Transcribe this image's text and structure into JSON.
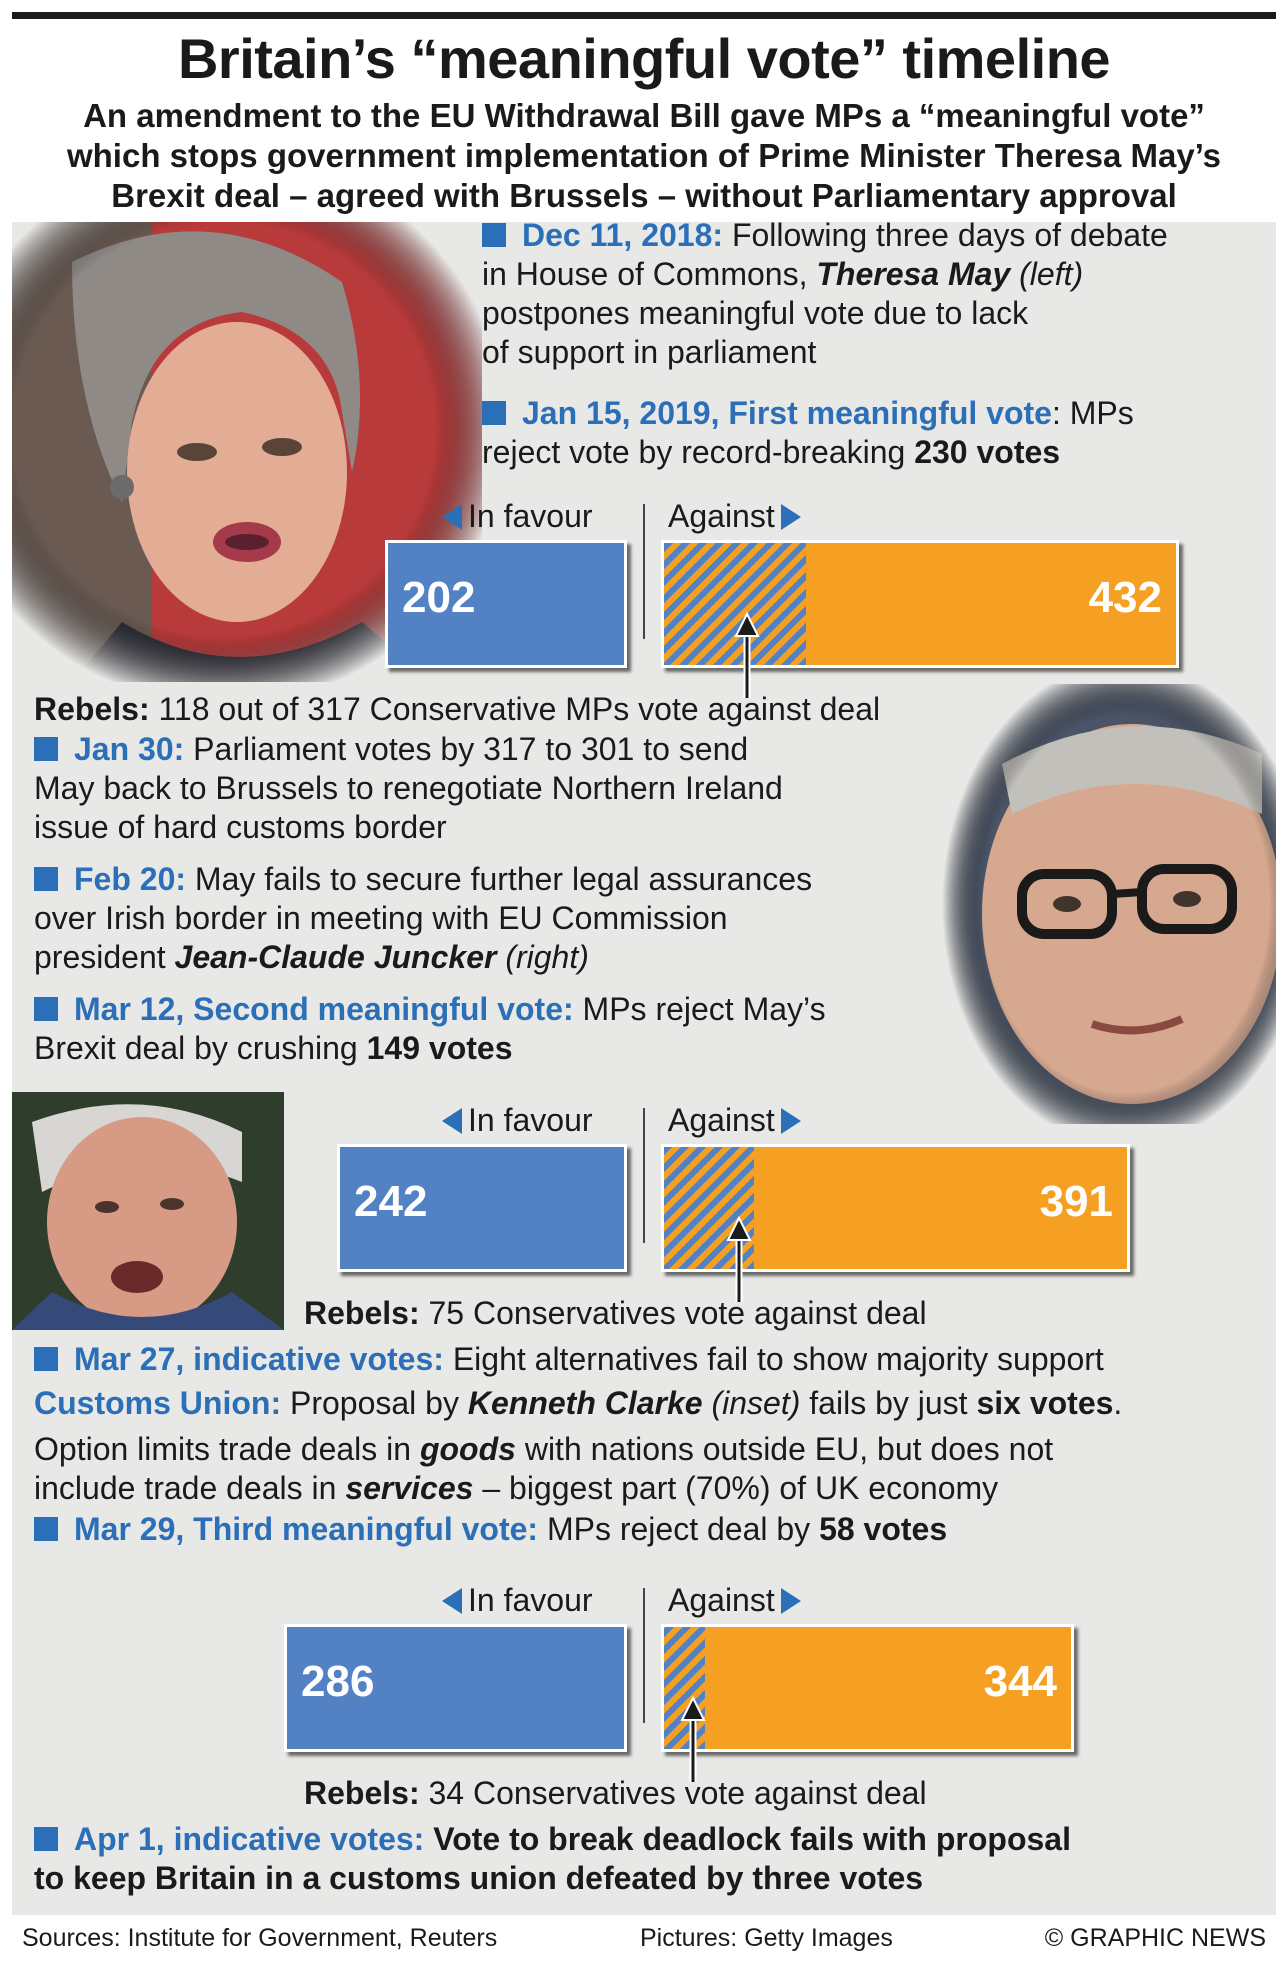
{
  "title": "Britain’s “meaningful vote” timeline",
  "subtitle": [
    "An amendment to the EU Withdrawal Bill gave MPs a “meaningful vote”",
    "which stops government implementation of Prime Minister Theresa May’s",
    "Brexit deal – agreed with Brussels – without Parliamentary approval"
  ],
  "colors": {
    "in_favour": "#5282c4",
    "against": "#f5a023",
    "accent": "#2b6fb8",
    "panel": "#e8e8e6"
  },
  "timeline": {
    "dec11": {
      "date": "Dec 11, 2018:",
      "lines": [
        "Following three days of debate",
        "in House of Commons, ",
        "Theresa May",
        " (left)",
        "postpones meaningful vote due to lack",
        "of support in parliament"
      ]
    },
    "jan15": {
      "date": "Jan 15, 2019, First meaningful vote",
      "text1": ": MPs",
      "text2": "reject vote by record-breaking ",
      "bold": "230 votes"
    },
    "rebels1": {
      "label": "Rebels:",
      "text": " 118 out of 317 Conservative MPs vote against deal"
    },
    "jan30": {
      "date": "Jan 30:",
      "lines": [
        " Parliament votes by 317 to 301 to send",
        "May back to Brussels to renegotiate Northern Ireland",
        "issue of hard customs border"
      ]
    },
    "feb20": {
      "date": "Feb 20:",
      "lines": [
        " May fails to secure further legal assurances",
        "over Irish border in meeting with EU Commission",
        "president ",
        "Jean-Claude Juncker",
        " (right)"
      ]
    },
    "mar12": {
      "date": "Mar 12, Second meaningful vote:",
      "text1": " MPs reject May’s",
      "text2": "Brexit deal by crushing ",
      "bold": "149 votes"
    },
    "rebels2": {
      "label": "Rebels:",
      "text": " 75 Conservatives vote against deal"
    },
    "mar27": {
      "date": "Mar 27, indicative votes:",
      "text": " Eight alternatives fail to show majority support"
    },
    "customs": {
      "label": "Customs Union:",
      "t1": " Proposal by ",
      "name": "Kenneth Clarke",
      "t2": " (inset)",
      "t3": " fails by just ",
      "bold": "six votes",
      "t4": "."
    },
    "option": {
      "t1": "Option limits trade deals in ",
      "goods": "goods",
      "t2": " with nations outside EU, but does not",
      "t3": "include trade deals in ",
      "services": "services",
      "t4": " – biggest part (70%) of UK economy"
    },
    "mar29": {
      "date": "Mar 29, Third meaningful vote:",
      "text": " MPs reject deal by ",
      "bold": "58 votes"
    },
    "rebels3": {
      "label": "Rebels:",
      "text": " 34 Conservatives vote against deal"
    },
    "apr1": {
      "date": "Apr 1, indicative votes:",
      "line1": " Vote to break deadlock fails with proposal",
      "line2": "to keep Britain in a customs union defeated by three votes"
    }
  },
  "labels": {
    "in_favour": "In favour",
    "against": "Against"
  },
  "chart_data": [
    {
      "type": "bar",
      "title": "First meaningful vote",
      "categories": [
        "In favour",
        "Against"
      ],
      "values": [
        202,
        432
      ],
      "rebels": 118
    },
    {
      "type": "bar",
      "title": "Second meaningful vote",
      "categories": [
        "In favour",
        "Against"
      ],
      "values": [
        242,
        391
      ],
      "rebels": 75
    },
    {
      "type": "bar",
      "title": "Third meaningful vote",
      "categories": [
        "In favour",
        "Against"
      ],
      "values": [
        286,
        344
      ],
      "rebels": 34
    }
  ],
  "footer": {
    "sources": "Sources: Institute for Government, Reuters",
    "pictures": "Pictures: Getty Images",
    "copyright": "© GRAPHIC NEWS"
  }
}
